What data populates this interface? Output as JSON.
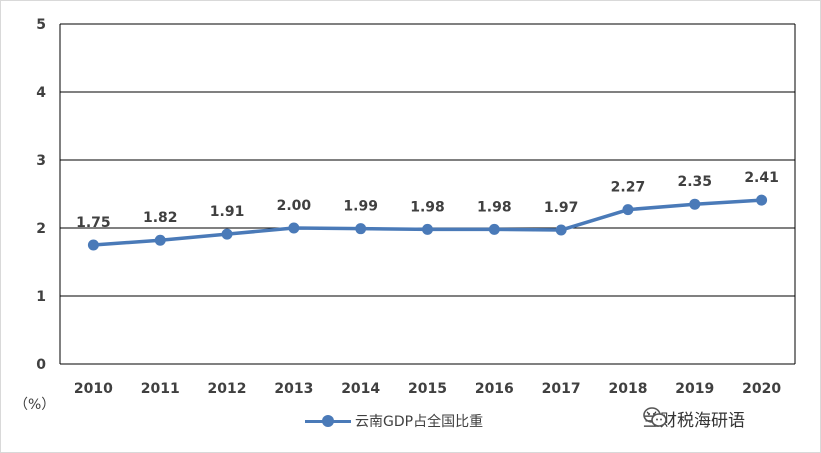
{
  "chart_data": {
    "type": "line",
    "x": [
      "2010",
      "2011",
      "2012",
      "2013",
      "2014",
      "2015",
      "2016",
      "2017",
      "2018",
      "2019",
      "2020"
    ],
    "series": [
      {
        "name": "云南GDP占全国比重",
        "values": [
          1.75,
          1.82,
          1.91,
          2.0,
          1.99,
          1.98,
          1.98,
          1.97,
          2.27,
          2.35,
          2.41
        ]
      }
    ],
    "data_labels": [
      "1.75",
      "1.82",
      "1.91",
      "2.00",
      "1.99",
      "1.98",
      "1.98",
      "1.97",
      "2.27",
      "2.35",
      "2.41"
    ],
    "yticks": [
      "0",
      "1",
      "2",
      "3",
      "4",
      "5"
    ],
    "ylim": [
      0,
      5
    ],
    "ylabel": "（%）",
    "grid": true,
    "legend_position": "bottom",
    "line_color": "#4a7ab8"
  },
  "watermark": {
    "text": "兰财税海研语",
    "icon": "wechat-icon"
  }
}
